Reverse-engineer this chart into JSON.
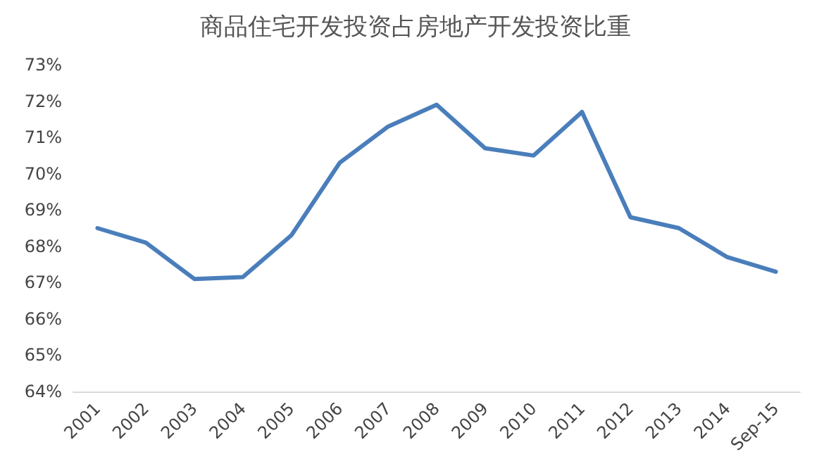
{
  "chart_data": {
    "type": "line",
    "title": "商品住宅开发投资占房地产开发投资比重",
    "categories": [
      "2001",
      "2002",
      "2003",
      "2004",
      "2005",
      "2006",
      "2007",
      "2008",
      "2009",
      "2010",
      "2011",
      "2012",
      "2013",
      "2014",
      "Sep-15"
    ],
    "series": [
      {
        "color": "#4a7ebb",
        "values": [
          68.5,
          68.1,
          67.1,
          67.15,
          68.3,
          70.3,
          71.3,
          71.9,
          70.7,
          70.5,
          71.7,
          68.8,
          68.5,
          67.7,
          67.3
        ]
      }
    ],
    "ylim": [
      64,
      73
    ],
    "yticks": [
      {
        "value": 64,
        "label": "64%"
      },
      {
        "value": 65,
        "label": "65%"
      },
      {
        "value": 66,
        "label": "66%"
      },
      {
        "value": 67,
        "label": "67%"
      },
      {
        "value": 68,
        "label": "68%"
      },
      {
        "value": 69,
        "label": "69%"
      },
      {
        "value": 70,
        "label": "70%"
      },
      {
        "value": 71,
        "label": "71%"
      },
      {
        "value": 72,
        "label": "72%"
      },
      {
        "value": 73,
        "label": "73%"
      }
    ],
    "grid": false,
    "marker": "none",
    "line_style": "solid"
  }
}
